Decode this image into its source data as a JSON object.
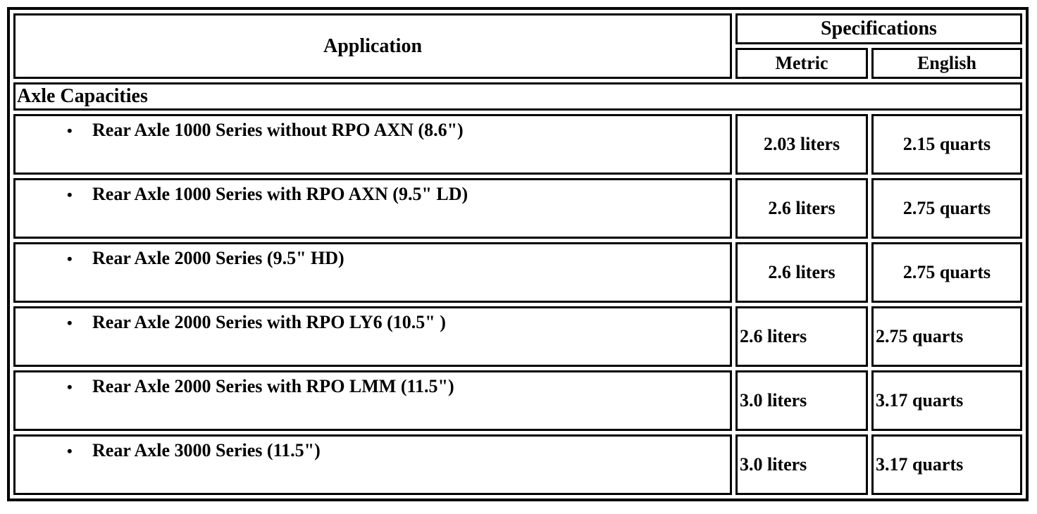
{
  "table": {
    "header": {
      "application": "Application",
      "specifications": "Specifications",
      "metric": "Metric",
      "english": "English"
    },
    "section_title": "Axle Capacities",
    "bullet_glyph": "•",
    "rows": [
      {
        "application": "Rear Axle 1000 Series without RPO AXN (8.6\")",
        "metric": "2.03 liters",
        "english": "2.15 quarts",
        "value_align": "center"
      },
      {
        "application": "Rear Axle 1000 Series with RPO AXN (9.5\" LD)",
        "metric": "2.6 liters",
        "english": "2.75 quarts",
        "value_align": "center"
      },
      {
        "application": "Rear Axle 2000 Series (9.5\" HD)",
        "metric": "2.6 liters",
        "english": "2.75 quarts",
        "value_align": "center"
      },
      {
        "application": "Rear Axle 2000 Series with RPO LY6 (10.5\" )",
        "metric": "2.6 liters",
        "english": "2.75 quarts",
        "value_align": "left"
      },
      {
        "application": "Rear Axle 2000 Series with RPO LMM (11.5\")",
        "metric": "3.0 liters",
        "english": "3.17 quarts",
        "value_align": "left"
      },
      {
        "application": "Rear Axle 3000 Series (11.5\")",
        "metric": "3.0 liters",
        "english": "3.17 quarts",
        "value_align": "left"
      }
    ],
    "colors": {
      "border": "#000000",
      "text": "#000000",
      "background": "#ffffff"
    }
  }
}
